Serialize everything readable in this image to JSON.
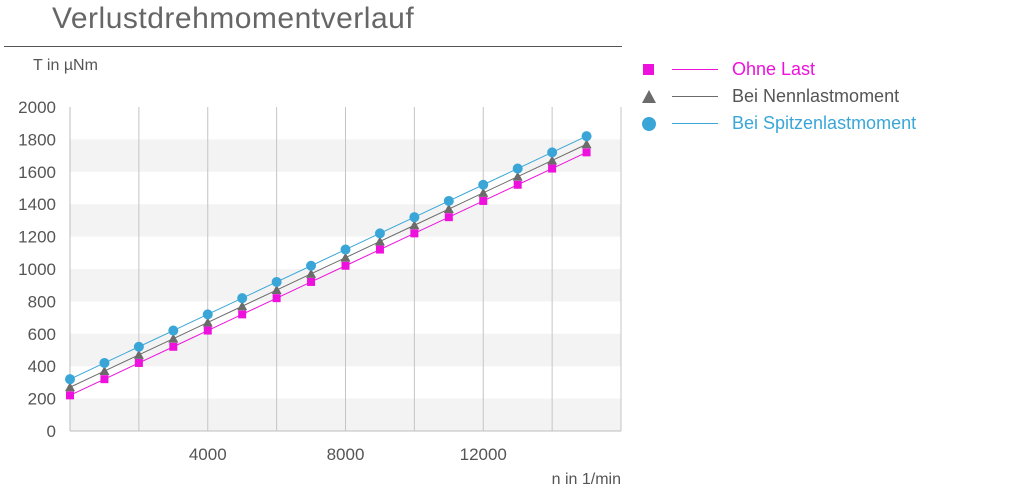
{
  "title": "Verlustdrehmomentverlauf",
  "chart_data": {
    "type": "line",
    "ylabel": "T in µNm",
    "xlabel": "n in 1/min",
    "xlim": [
      0,
      16000
    ],
    "ylim": [
      0,
      2000
    ],
    "xticks": [
      4000,
      8000,
      12000
    ],
    "yticks": [
      0,
      200,
      400,
      600,
      800,
      1000,
      1200,
      1400,
      1600,
      1800,
      2000
    ],
    "legend_position": "top-right",
    "x": [
      0,
      1000,
      2000,
      3000,
      4000,
      5000,
      6000,
      7000,
      8000,
      9000,
      10000,
      11000,
      12000,
      13000,
      14000,
      15000
    ],
    "series": [
      {
        "name": "Ohne Last",
        "marker": "square",
        "color": "#ee11dd",
        "values": [
          220,
          320,
          420,
          520,
          620,
          720,
          820,
          920,
          1020,
          1120,
          1220,
          1320,
          1420,
          1520,
          1620,
          1720
        ]
      },
      {
        "name": "Bei Nennlastmoment",
        "marker": "triangle",
        "color": "#6b6b6b",
        "values": [
          270,
          370,
          470,
          570,
          670,
          770,
          870,
          970,
          1070,
          1170,
          1270,
          1370,
          1470,
          1570,
          1670,
          1770
        ]
      },
      {
        "name": "Bei Spitzenlastmoment",
        "marker": "circle",
        "color": "#3aa6d8",
        "values": [
          320,
          420,
          520,
          620,
          720,
          820,
          920,
          1020,
          1120,
          1220,
          1320,
          1420,
          1520,
          1620,
          1720,
          1820
        ]
      }
    ]
  }
}
